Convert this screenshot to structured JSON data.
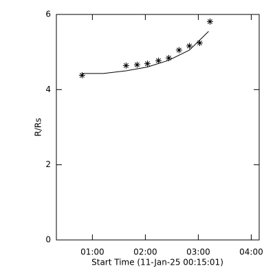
{
  "chart_data": {
    "type": "scatter",
    "xlabel": "Start Time (11-Jan-25 00:15:01)",
    "ylabel": "R/Rs",
    "xlim": [
      0.32,
      4.15
    ],
    "ylim": [
      0,
      6
    ],
    "xticks": [
      {
        "value": 1,
        "label": "01:00"
      },
      {
        "value": 2,
        "label": "02:00"
      },
      {
        "value": 3,
        "label": "03:00"
      },
      {
        "value": 4,
        "label": "04:00"
      }
    ],
    "yticks": [
      0,
      2,
      4,
      6
    ],
    "color": "#000000",
    "series": [
      {
        "type": "scatter",
        "x": [
          0.805,
          1.636,
          1.844,
          2.039,
          2.247,
          2.442,
          2.636,
          2.831,
          3.026,
          3.221
        ],
        "values": [
          4.38,
          4.64,
          4.66,
          4.69,
          4.77,
          4.84,
          5.05,
          5.16,
          5.24,
          5.81
        ]
      },
      {
        "type": "line",
        "x": [
          0.805,
          1.208,
          1.636,
          2.039,
          2.442,
          2.831,
          3.195
        ],
        "values": [
          4.43,
          4.43,
          4.5,
          4.6,
          4.78,
          5.05,
          5.55
        ]
      }
    ]
  }
}
